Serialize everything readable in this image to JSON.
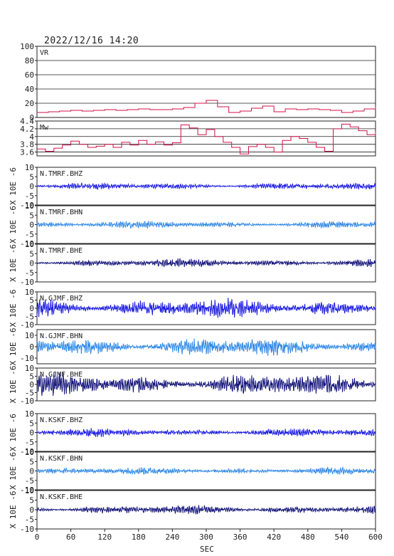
{
  "chart_data": {
    "type": "line",
    "title": "2022/12/16  14:20",
    "xlabel": "SEC",
    "xlim": [
      0,
      600
    ],
    "xticks": [
      0,
      60,
      120,
      180,
      240,
      300,
      360,
      420,
      480,
      540,
      600
    ],
    "panels": [
      {
        "label": "VR",
        "color": "#d0104a",
        "ylim": [
          0,
          100
        ],
        "yticks": [
          0,
          20,
          40,
          60,
          80,
          100
        ],
        "grid": true,
        "ylabel": "",
        "x": [
          0,
          20,
          40,
          60,
          80,
          100,
          120,
          140,
          160,
          180,
          200,
          220,
          240,
          260,
          280,
          300,
          320,
          340,
          360,
          380,
          400,
          420,
          440,
          460,
          480,
          500,
          520,
          540,
          560,
          580,
          600
        ],
        "y": [
          7,
          8,
          9,
          10,
          9,
          10,
          11,
          10,
          11,
          12,
          11,
          11,
          12,
          14,
          20,
          24,
          15,
          7,
          9,
          13,
          16,
          8,
          12,
          11,
          12,
          11,
          10,
          7,
          9,
          12,
          15
        ]
      },
      {
        "label": "Mw",
        "color": "#d0104a",
        "ylim": [
          3.5,
          4.4
        ],
        "yticks": [
          3.6,
          3.8,
          4.0,
          4.2,
          4.4
        ],
        "grid": true,
        "ylabel": "",
        "x": [
          0,
          15,
          30,
          45,
          60,
          75,
          90,
          105,
          120,
          135,
          150,
          165,
          180,
          195,
          210,
          225,
          240,
          255,
          270,
          285,
          300,
          315,
          330,
          345,
          360,
          375,
          390,
          405,
          420,
          435,
          450,
          465,
          480,
          495,
          510,
          525,
          540,
          555,
          570,
          585,
          600
        ],
        "y": [
          3.68,
          3.62,
          3.7,
          3.78,
          3.88,
          3.8,
          3.72,
          3.75,
          3.8,
          3.72,
          3.85,
          3.78,
          3.9,
          3.8,
          3.86,
          3.78,
          3.84,
          4.3,
          4.22,
          4.05,
          4.18,
          4.0,
          3.85,
          3.72,
          3.55,
          3.74,
          3.8,
          3.72,
          3.6,
          3.9,
          4.0,
          3.95,
          3.85,
          3.72,
          3.62,
          4.2,
          4.32,
          4.25,
          4.15,
          4.05,
          4.12
        ]
      },
      {
        "label": "N.TMRF.BHZ",
        "color": "#1a1ae0",
        "ylim": [
          -10,
          10
        ],
        "yticks": [
          -10,
          -5,
          0,
          5,
          10
        ],
        "ylabel": "X 10E -6",
        "amp": 1.3,
        "grid": false
      },
      {
        "label": "N.TMRF.BHN",
        "color": "#2e88e6",
        "ylim": [
          -10,
          10
        ],
        "yticks": [
          -10,
          -5,
          0,
          5,
          10
        ],
        "ylabel": "X 10E -6",
        "amp": 1.4,
        "grid": false
      },
      {
        "label": "N.TMRF.BHE",
        "color": "#14147a",
        "ylim": [
          -10,
          10
        ],
        "yticks": [
          -10,
          -5,
          0,
          5,
          10
        ],
        "ylabel": "X 10E -6",
        "amp": 1.6,
        "grid": false
      },
      {
        "label": "N.GJMF.BHZ",
        "color": "#1a1ae0",
        "ylim": [
          -10,
          10
        ],
        "yticks": [
          -10,
          -5,
          0,
          5,
          10
        ],
        "ylabel": "X 10E -6",
        "amp": 4.5,
        "grid": false
      },
      {
        "label": "N.GJMF.BHN",
        "color": "#2e88e6",
        "ylim": [
          -15,
          15
        ],
        "yticks": [
          -10,
          0,
          10
        ],
        "ylabel": "X 10E -6",
        "amp": 6.0,
        "grid": false
      },
      {
        "label": "N.GJMF.BHE",
        "color": "#14147a",
        "ylim": [
          -10,
          10
        ],
        "yticks": [
          -10,
          -5,
          0,
          5,
          10
        ],
        "ylabel": "X 10E -6",
        "amp": 5.0,
        "grid": false
      },
      {
        "label": "N.KSKF.BHZ",
        "color": "#1a1ae0",
        "ylim": [
          -10,
          10
        ],
        "yticks": [
          -10,
          -5,
          0,
          5,
          10
        ],
        "ylabel": "X 10E -6",
        "amp": 1.6,
        "grid": false
      },
      {
        "label": "N.KSKF.BHN",
        "color": "#2e88e6",
        "ylim": [
          -10,
          10
        ],
        "yticks": [
          -10,
          -5,
          0,
          5,
          10
        ],
        "ylabel": "X 10E -6",
        "amp": 1.4,
        "grid": false
      },
      {
        "label": "N.KSKF.BHE",
        "color": "#14147a",
        "ylim": [
          -10,
          10
        ],
        "yticks": [
          -10,
          -5,
          0,
          5,
          10
        ],
        "ylabel": "X 10E -6",
        "amp": 1.8,
        "grid": false
      }
    ]
  }
}
